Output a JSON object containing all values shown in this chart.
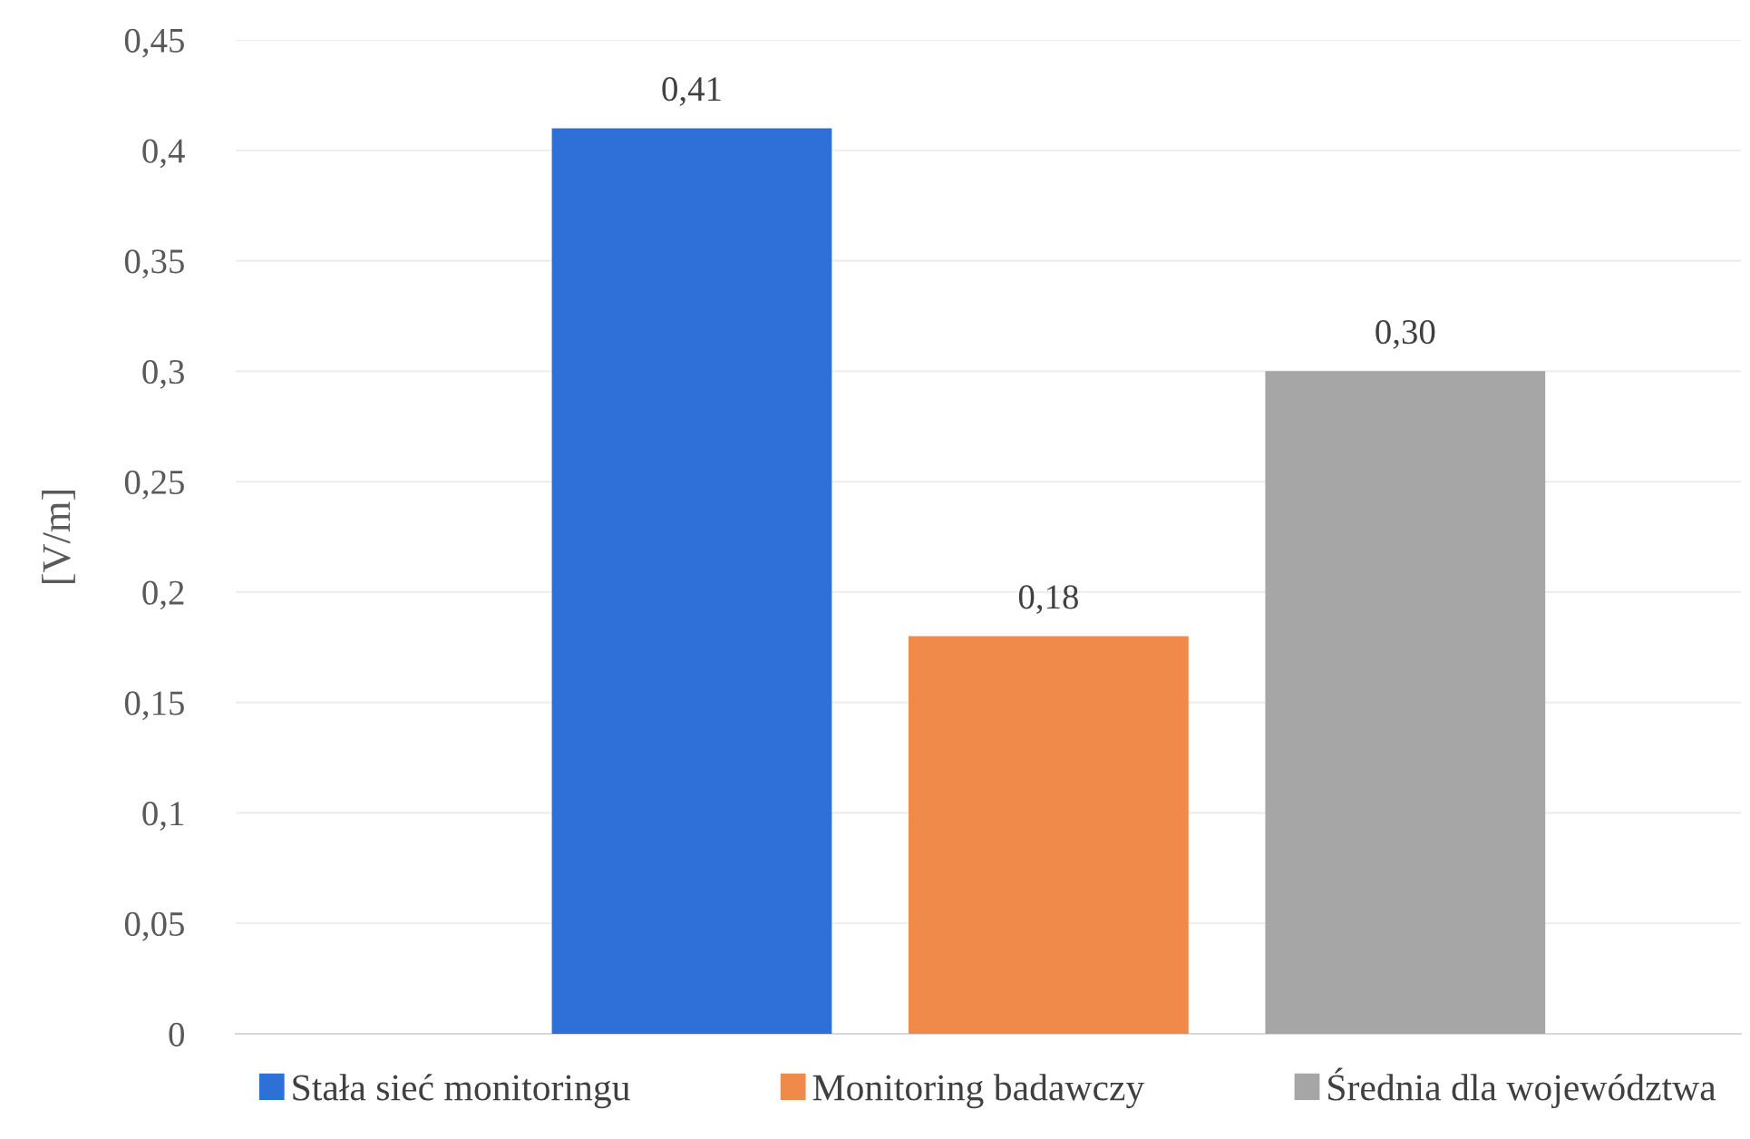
{
  "chart_data": {
    "type": "bar",
    "ylabel": "[V/m]",
    "categories": [
      null
    ],
    "series": [
      {
        "name": "Stała sieć monitoringu",
        "color": "#2f6fd8",
        "values": [
          0.41
        ],
        "value_labels": [
          "0,41"
        ]
      },
      {
        "name": "Monitoring badawczy",
        "color": "#f08a4b",
        "values": [
          0.18
        ],
        "value_labels": [
          "0,18"
        ]
      },
      {
        "name": "Średnia dla województwa",
        "color": "#a6a6a6",
        "values": [
          0.3
        ],
        "value_labels": [
          "0,30"
        ]
      }
    ],
    "ylim": [
      0,
      0.45
    ],
    "yticks": [
      {
        "value": 0,
        "label": "0"
      },
      {
        "value": 0.05,
        "label": "0,05"
      },
      {
        "value": 0.1,
        "label": "0,1"
      },
      {
        "value": 0.15,
        "label": "0,15"
      },
      {
        "value": 0.2,
        "label": "0,2"
      },
      {
        "value": 0.25,
        "label": "0,25"
      },
      {
        "value": 0.3,
        "label": "0,3"
      },
      {
        "value": 0.35,
        "label": "0,35"
      },
      {
        "value": 0.4,
        "label": "0,4"
      },
      {
        "value": 0.45,
        "label": "0,45"
      }
    ],
    "grid": "y",
    "legend": "bottom"
  }
}
